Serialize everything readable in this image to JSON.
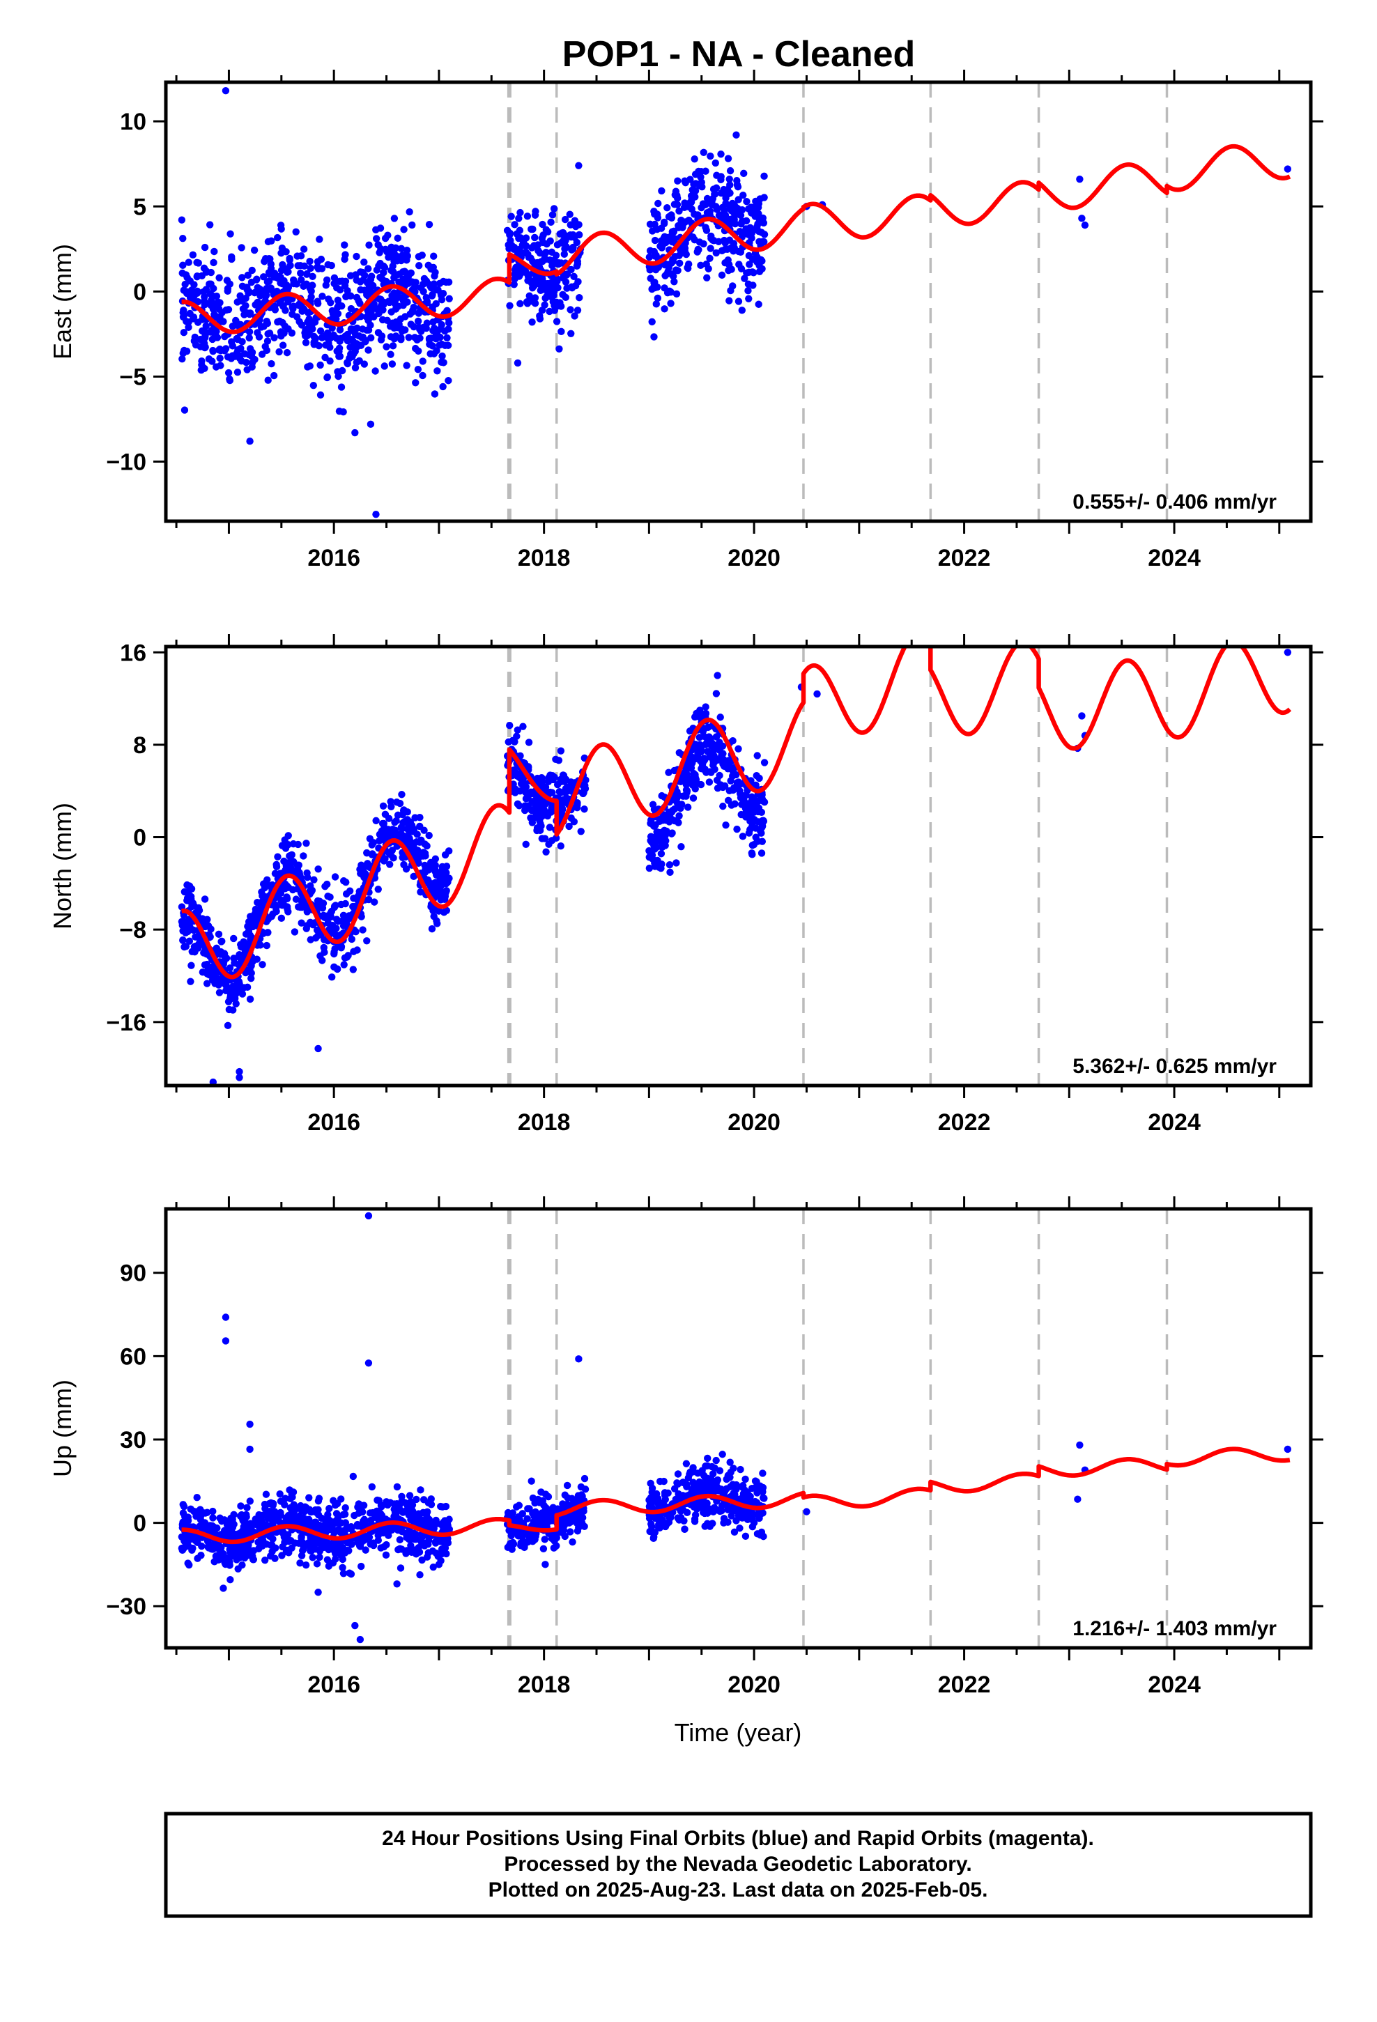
{
  "chart_data": {
    "title": "POP1  - NA - Cleaned",
    "xlabel": "Time (year)",
    "x_ticks": [
      2016,
      2018,
      2020,
      2022,
      2024
    ],
    "xlim": [
      2014.4,
      2025.3
    ],
    "colors": {
      "data": "#0000ff",
      "model": "#ff0000",
      "event_lines": "#bbbbbb"
    },
    "event_lines": [
      2017.67,
      2018.12,
      2020.47,
      2021.68,
      2022.71,
      2023.93
    ],
    "event_lines_thick": [
      2017.67
    ],
    "panels": [
      {
        "type": "scatter",
        "ylabel": "East (mm)",
        "ylim": [
          -13.5,
          12.3
        ],
        "yticks": [
          -10,
          -5,
          0,
          5,
          10
        ],
        "rate_text": "0.555+/- 0.406 mm/yr",
        "scatter_segments": [
          {
            "x": [
              2014.55,
              2017.1
            ],
            "trend": [
              -1.6,
              -0.6
            ],
            "amp": 0.9,
            "spread": 1.8
          },
          {
            "x": [
              2017.65,
              2018.35
            ],
            "trend": [
              1.5,
              2.0
            ],
            "amp": 0.8,
            "spread": 1.6
          },
          {
            "x": [
              2019.0,
              2020.1
            ],
            "trend": [
              3.0,
              4.0
            ],
            "amp": 0.9,
            "spread": 1.7
          }
        ],
        "outliers": [
          [
            2014.97,
            11.8
          ],
          [
            2016.4,
            -13.1
          ],
          [
            2016.35,
            -7.8
          ],
          [
            2016.2,
            -8.3
          ],
          [
            2017.75,
            -4.2
          ],
          [
            2015.2,
            -8.8
          ],
          [
            2018.33,
            7.4
          ],
          [
            2019.83,
            9.2
          ],
          [
            2020.5,
            5.0
          ],
          [
            2020.65,
            5.1
          ],
          [
            2023.1,
            6.6
          ],
          [
            2023.12,
            4.3
          ],
          [
            2023.15,
            3.9
          ],
          [
            2025.08,
            7.2
          ]
        ],
        "model": {
          "segments": [
            {
              "x": [
                2014.55,
                2017.67
              ],
              "trend": [
                -1.6,
                -0.2
              ],
              "amp": 1.0
            },
            {
              "x": [
                2017.67,
                2018.12
              ],
              "trend": [
                1.6,
                1.9
              ],
              "amp": 0.8
            },
            {
              "x": [
                2018.12,
                2020.47
              ],
              "trend": [
                2.0,
                3.9
              ],
              "amp": 1.1
            },
            {
              "x": [
                2020.47,
                2021.68
              ],
              "trend": [
                4.0,
                4.6
              ],
              "amp": 1.1
            },
            {
              "x": [
                2021.68,
                2022.71
              ],
              "trend": [
                4.9,
                5.4
              ],
              "amp": 1.1
            },
            {
              "x": [
                2022.71,
                2023.93
              ],
              "trend": [
                5.8,
                6.6
              ],
              "amp": 1.1
            },
            {
              "x": [
                2023.93,
                2025.1
              ],
              "trend": [
                7.0,
                7.8
              ],
              "amp": 1.1
            }
          ]
        }
      },
      {
        "type": "scatter",
        "ylabel": "North (mm)",
        "ylim": [
          -21.5,
          16.5
        ],
        "yticks": [
          -16,
          -8,
          0,
          8,
          16
        ],
        "rate_text": "5.362+/- 0.625 mm/yr",
        "scatter_segments": [
          {
            "x": [
              2014.55,
              2017.1
            ],
            "trend": [
              -10.5,
              -1.0
            ],
            "amp": 3.5,
            "spread": 1.6
          },
          {
            "x": [
              2017.65,
              2018.4
            ],
            "trend": [
              5.5,
              4.0
            ],
            "amp": 2.0,
            "spread": 1.6
          },
          {
            "x": [
              2019.0,
              2020.1
            ],
            "trend": [
              3.0,
              6.0
            ],
            "amp": 3.5,
            "spread": 1.8
          }
        ],
        "outliers": [
          [
            2014.85,
            -21.2
          ],
          [
            2015.1,
            -20.3
          ],
          [
            2015.1,
            -20.8
          ],
          [
            2015.85,
            -18.3
          ],
          [
            2020.45,
            13.0
          ],
          [
            2020.6,
            12.4
          ],
          [
            2023.12,
            10.5
          ],
          [
            2023.15,
            8.8
          ],
          [
            2023.08,
            7.7
          ],
          [
            2025.08,
            16.0
          ]
        ],
        "model": {
          "segments": [
            {
              "x": [
                2014.55,
                2017.67
              ],
              "trend": [
                -10.0,
                -0.5
              ],
              "amp": 3.6
            },
            {
              "x": [
                2017.67,
                2018.12
              ],
              "trend": [
                6.5,
                4.5
              ],
              "amp": 1.5
            },
            {
              "x": [
                2018.12,
                2020.47
              ],
              "trend": [
                3.5,
                8.5
              ],
              "amp": 3.6
            },
            {
              "x": [
                2020.47,
                2021.68
              ],
              "trend": [
                11.0,
                14.5
              ],
              "amp": 3.6
            },
            {
              "x": [
                2021.68,
                2022.71
              ],
              "trend": [
                12.0,
                13.5
              ],
              "amp": 3.6
            },
            {
              "x": [
                2022.71,
                2023.93
              ],
              "trend": [
                11.0,
                12.0
              ],
              "amp": 3.6
            },
            {
              "x": [
                2023.93,
                2025.1
              ],
              "trend": [
                12.0,
                14.5
              ],
              "amp": 3.6
            }
          ]
        }
      },
      {
        "type": "scatter",
        "ylabel": "Up (mm)",
        "ylim": [
          -45,
          113
        ],
        "yticks": [
          -30,
          0,
          30,
          60,
          90
        ],
        "rate_text": "1.216+/- 1.403 mm/yr",
        "scatter_segments": [
          {
            "x": [
              2014.55,
              2017.1
            ],
            "trend": [
              -5.0,
              -1.0
            ],
            "amp": 2.5,
            "spread": 5.5
          },
          {
            "x": [
              2017.65,
              2018.4
            ],
            "trend": [
              -3.0,
              5.0
            ],
            "amp": 2.0,
            "spread": 5.0
          },
          {
            "x": [
              2019.0,
              2020.1
            ],
            "trend": [
              7.0,
              9.0
            ],
            "amp": 2.5,
            "spread": 5.0
          }
        ],
        "outliers": [
          [
            2016.33,
            110.5
          ],
          [
            2014.97,
            74.0
          ],
          [
            2014.97,
            65.5
          ],
          [
            2018.33,
            59.0
          ],
          [
            2016.33,
            57.5
          ],
          [
            2015.2,
            35.5
          ],
          [
            2015.2,
            26.5
          ],
          [
            2016.2,
            -37.0
          ],
          [
            2016.25,
            -42.0
          ],
          [
            2015.85,
            -25.0
          ],
          [
            2016.6,
            -22.0
          ],
          [
            2017.0,
            -15.0
          ],
          [
            2020.5,
            4.0
          ],
          [
            2023.1,
            28.0
          ],
          [
            2023.15,
            19.0
          ],
          [
            2023.08,
            8.5
          ],
          [
            2025.08,
            26.5
          ]
        ],
        "model": {
          "segments": [
            {
              "x": [
                2014.55,
                2017.67
              ],
              "trend": [
                -5.0,
                -1.0
              ],
              "amp": 2.5
            },
            {
              "x": [
                2017.67,
                2018.12
              ],
              "trend": [
                -2.0,
                -1.0
              ],
              "amp": 1.5
            },
            {
              "x": [
                2018.12,
                2020.47
              ],
              "trend": [
                5.0,
                8.5
              ],
              "amp": 2.5
            },
            {
              "x": [
                2020.47,
                2021.68
              ],
              "trend": [
                7.0,
                10.0
              ],
              "amp": 2.5
            },
            {
              "x": [
                2021.68,
                2022.71
              ],
              "trend": [
                13.0,
                15.5
              ],
              "amp": 2.5
            },
            {
              "x": [
                2022.71,
                2023.93
              ],
              "trend": [
                19.0,
                21.0
              ],
              "amp": 2.5
            },
            {
              "x": [
                2023.93,
                2025.1
              ],
              "trend": [
                23.0,
                25.0
              ],
              "amp": 2.5
            }
          ]
        }
      }
    ],
    "footer": [
      "24 Hour Positions Using Final Orbits (blue) and Rapid Orbits (magenta).",
      "Processed by the Nevada Geodetic Laboratory.",
      "Plotted on 2025-Aug-23. Last data on 2025-Feb-05."
    ]
  }
}
